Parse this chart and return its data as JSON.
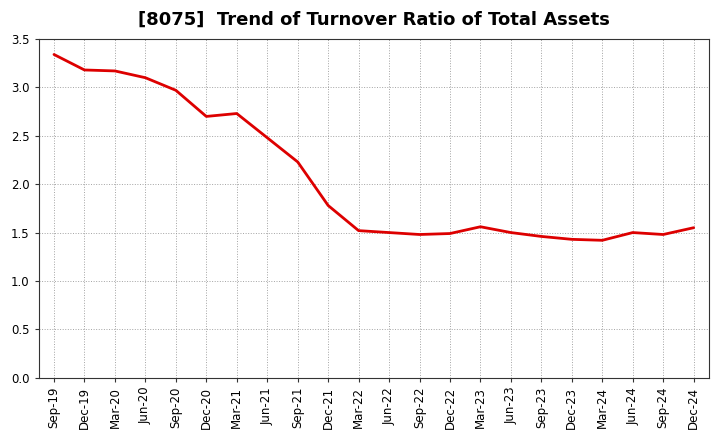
{
  "title": "[8075]  Trend of Turnover Ratio of Total Assets",
  "x_labels": [
    "Sep-19",
    "Dec-19",
    "Mar-20",
    "Jun-20",
    "Sep-20",
    "Dec-20",
    "Mar-21",
    "Jun-21",
    "Sep-21",
    "Dec-21",
    "Mar-22",
    "Jun-22",
    "Sep-22",
    "Dec-22",
    "Mar-23",
    "Jun-23",
    "Sep-23",
    "Dec-23",
    "Mar-24",
    "Jun-24",
    "Sep-24",
    "Dec-24"
  ],
  "y_values": [
    3.34,
    3.18,
    3.17,
    3.1,
    2.97,
    2.7,
    2.73,
    2.48,
    2.23,
    1.78,
    1.52,
    1.5,
    1.48,
    1.49,
    1.56,
    1.5,
    1.46,
    1.43,
    1.42,
    1.5,
    1.48,
    1.55
  ],
  "line_color": "#dd0000",
  "line_width": 2.0,
  "ylim": [
    0.0,
    3.5
  ],
  "yticks": [
    0.0,
    0.5,
    1.0,
    1.5,
    2.0,
    2.5,
    3.0,
    3.5
  ],
  "grid_color": "#999999",
  "grid_linestyle": ":",
  "background_color": "#ffffff",
  "title_fontsize": 13,
  "tick_fontsize": 8.5
}
